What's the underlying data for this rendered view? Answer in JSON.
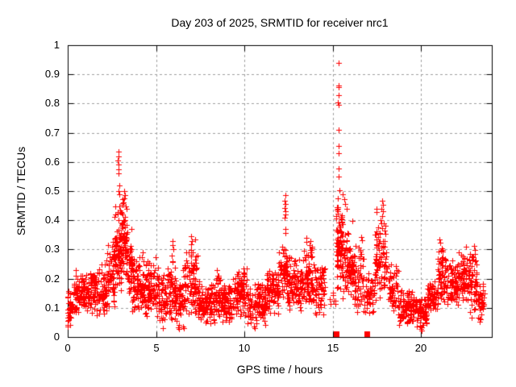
{
  "window_title": "Day 203 of 2025, SRMTID for receiver nrc1",
  "chart_data": {
    "type": "scatter",
    "title": "Day 203 of 2025, SRMTID for receiver nrc1",
    "xlabel": "GPS time / hours",
    "ylabel": "SRMTID / TECUs",
    "xlim": [
      0,
      24
    ],
    "ylim": [
      0,
      1
    ],
    "xticks": [
      0,
      5,
      10,
      15,
      20
    ],
    "xtick_labels": [
      "0",
      "5",
      "10",
      "15",
      "20"
    ],
    "yticks": [
      0,
      0.1,
      0.2,
      0.3,
      0.4,
      0.5,
      0.6,
      0.7,
      0.8,
      0.9,
      1
    ],
    "ytick_labels": [
      "0",
      "0.1",
      "0.2",
      "0.3",
      "0.4",
      "0.5",
      "0.6",
      "0.7",
      "0.8",
      "0.9",
      "1"
    ],
    "grid": true,
    "legend": "none",
    "marker": "plus",
    "marker_color": "#ff0000",
    "flag_marker": "filled-square",
    "grid_color": "#a0a0a0",
    "axis_color": "#000000",
    "background": "#ffffff",
    "seed": 77,
    "density_bands": [
      [
        0.0,
        0.3,
        28,
        0.03,
        0.2
      ],
      [
        0.3,
        1.2,
        110,
        0.08,
        0.235
      ],
      [
        1.2,
        2.2,
        120,
        0.07,
        0.26
      ],
      [
        2.2,
        2.65,
        60,
        0.1,
        0.33
      ],
      [
        2.65,
        3.05,
        85,
        0.14,
        0.47
      ],
      [
        3.05,
        3.35,
        65,
        0.2,
        0.5
      ],
      [
        3.35,
        3.65,
        50,
        0.12,
        0.4
      ],
      [
        3.65,
        4.25,
        80,
        0.07,
        0.3
      ],
      [
        4.25,
        5.2,
        120,
        0.07,
        0.285
      ],
      [
        5.2,
        5.65,
        50,
        0.04,
        0.22
      ],
      [
        5.65,
        6.15,
        62,
        0.05,
        0.3
      ],
      [
        6.15,
        6.6,
        50,
        0.03,
        0.24
      ],
      [
        6.6,
        7.35,
        95,
        0.07,
        0.32
      ],
      [
        7.35,
        8.35,
        110,
        0.04,
        0.2
      ],
      [
        8.35,
        8.65,
        38,
        0.07,
        0.23
      ],
      [
        8.65,
        9.45,
        90,
        0.05,
        0.2
      ],
      [
        9.45,
        10.15,
        85,
        0.07,
        0.24
      ],
      [
        10.15,
        11.25,
        115,
        0.04,
        0.2
      ],
      [
        11.25,
        11.95,
        85,
        0.08,
        0.25
      ],
      [
        11.95,
        12.45,
        60,
        0.12,
        0.33
      ],
      [
        12.45,
        13.25,
        90,
        0.09,
        0.28
      ],
      [
        13.25,
        13.85,
        75,
        0.1,
        0.33
      ],
      [
        13.85,
        14.55,
        70,
        0.07,
        0.28
      ],
      [
        14.55,
        15.2,
        8,
        0.1,
        0.18
      ],
      [
        15.2,
        15.55,
        75,
        0.15,
        0.52
      ],
      [
        15.55,
        16.1,
        75,
        0.1,
        0.42
      ],
      [
        16.1,
        16.75,
        70,
        0.08,
        0.35
      ],
      [
        16.75,
        17.35,
        45,
        0.07,
        0.24
      ],
      [
        17.35,
        18.15,
        85,
        0.12,
        0.45
      ],
      [
        18.15,
        18.7,
        55,
        0.08,
        0.27
      ],
      [
        18.7,
        19.7,
        105,
        0.04,
        0.17
      ],
      [
        19.7,
        20.35,
        70,
        0.03,
        0.16
      ],
      [
        20.35,
        20.95,
        65,
        0.07,
        0.2
      ],
      [
        20.95,
        21.25,
        42,
        0.12,
        0.33
      ],
      [
        21.25,
        22.1,
        95,
        0.1,
        0.29
      ],
      [
        22.1,
        22.75,
        80,
        0.11,
        0.3
      ],
      [
        22.75,
        23.2,
        50,
        0.08,
        0.31
      ],
      [
        23.2,
        23.6,
        38,
        0.05,
        0.2
      ]
    ],
    "outlier_points": [
      [
        2.86,
        0.635
      ],
      [
        2.88,
        0.62
      ],
      [
        2.85,
        0.605
      ],
      [
        2.87,
        0.59
      ],
      [
        2.86,
        0.575
      ],
      [
        2.89,
        0.56
      ],
      [
        2.91,
        0.52
      ],
      [
        2.87,
        0.5
      ],
      [
        2.9,
        0.49
      ],
      [
        3.18,
        0.5
      ],
      [
        3.24,
        0.487
      ],
      [
        12.3,
        0.485
      ],
      [
        12.28,
        0.468
      ],
      [
        12.31,
        0.455
      ],
      [
        12.29,
        0.443
      ],
      [
        12.32,
        0.432
      ],
      [
        12.3,
        0.42
      ],
      [
        12.28,
        0.408
      ],
      [
        12.33,
        0.37
      ],
      [
        12.3,
        0.357
      ],
      [
        13.72,
        0.33
      ],
      [
        13.7,
        0.315
      ],
      [
        13.5,
        0.34
      ],
      [
        13.52,
        0.325
      ],
      [
        15.33,
        0.94
      ],
      [
        15.31,
        0.862
      ],
      [
        15.33,
        0.855
      ],
      [
        15.32,
        0.83
      ],
      [
        15.3,
        0.805
      ],
      [
        15.34,
        0.795
      ],
      [
        15.32,
        0.71
      ],
      [
        15.34,
        0.655
      ],
      [
        15.33,
        0.63
      ],
      [
        15.31,
        0.578
      ],
      [
        15.35,
        0.55
      ],
      [
        15.58,
        0.49
      ],
      [
        15.63,
        0.473
      ],
      [
        15.7,
        0.455
      ],
      [
        15.78,
        0.44
      ],
      [
        17.78,
        0.468
      ],
      [
        17.82,
        0.452
      ],
      [
        17.75,
        0.44
      ],
      [
        17.85,
        0.43
      ],
      [
        17.8,
        0.415
      ],
      [
        17.72,
        0.4
      ],
      [
        17.88,
        0.39
      ],
      [
        0.02,
        0.035
      ],
      [
        0.02,
        0.055
      ],
      [
        0.03,
        0.075
      ],
      [
        0.02,
        0.095
      ],
      [
        0.03,
        0.115
      ],
      [
        0.02,
        0.135
      ],
      [
        0.03,
        0.158
      ],
      [
        10.55,
        0.035
      ],
      [
        10.6,
        0.03
      ],
      [
        19.92,
        0.04
      ],
      [
        19.98,
        0.028
      ],
      [
        20.05,
        0.022
      ],
      [
        22.85,
        0.065
      ],
      [
        23.3,
        0.052
      ],
      [
        23.35,
        0.1
      ],
      [
        6.3,
        0.028
      ],
      [
        5.4,
        0.03
      ],
      [
        5.95,
        0.33
      ],
      [
        5.94,
        0.315
      ],
      [
        5.97,
        0.3
      ],
      [
        7.0,
        0.345
      ],
      [
        7.02,
        0.33
      ],
      [
        6.98,
        0.318
      ],
      [
        7.2,
        0.335
      ],
      [
        21.04,
        0.335
      ],
      [
        21.06,
        0.322
      ],
      [
        22.98,
        0.312
      ],
      [
        23.02,
        0.298
      ],
      [
        22.55,
        0.31
      ],
      [
        9.95,
        0.235
      ],
      [
        9.97,
        0.222
      ],
      [
        8.45,
        0.228
      ],
      [
        17.42,
        0.35
      ],
      [
        17.46,
        0.335
      ]
    ],
    "flag_squares": [
      [
        15.2,
        0
      ],
      [
        16.95,
        0
      ]
    ]
  }
}
